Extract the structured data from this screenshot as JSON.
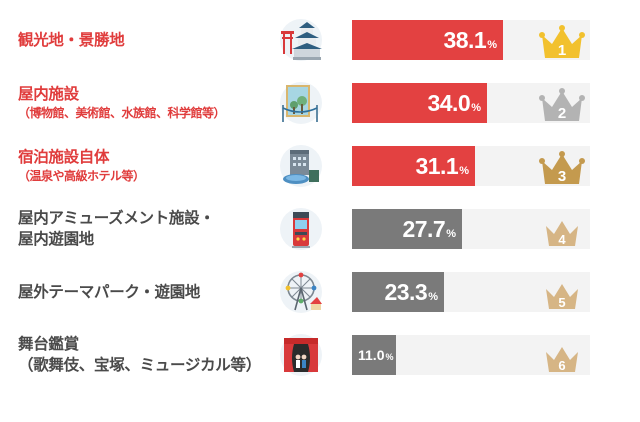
{
  "chart_data": {
    "type": "bar",
    "orientation": "horizontal",
    "unit": "%",
    "xlim": [
      0,
      60
    ],
    "categories": [
      {
        "label": "観光地・景勝地",
        "sub": "",
        "value": 38.1,
        "rank": 1,
        "icon": "castle-icon"
      },
      {
        "label": "屋内施設",
        "sub": "（博物館、美術館、水族館、科学館等）",
        "value": 34.0,
        "rank": 2,
        "icon": "museum-painting-icon"
      },
      {
        "label": "宿泊施設自体",
        "sub": "（温泉や高級ホテル等）",
        "value": 31.1,
        "rank": 3,
        "icon": "hotel-onsen-icon"
      },
      {
        "label": "屋内アミューズメント施設・",
        "sub": "屋内遊園地",
        "value": 27.7,
        "rank": 4,
        "icon": "arcade-machine-icon"
      },
      {
        "label": "屋外テーマパーク・遊園地",
        "sub": "",
        "value": 23.3,
        "rank": 5,
        "icon": "ferris-wheel-icon"
      },
      {
        "label": "舞台鑑賞",
        "sub": "（歌舞伎、宝塚、ミュージカル等）",
        "value": 11.0,
        "rank": 6,
        "icon": "theater-stage-icon"
      }
    ]
  },
  "colors": {
    "highlight": "#e34141",
    "normal": "#7a7a7a",
    "label_highlight": "#e03c3c",
    "label_normal": "#4a4a4a",
    "gold": "#f2c12e",
    "silver": "#b3b3b3",
    "bronze": "#c49a4e",
    "other_crown": "#d6b585",
    "track": "#f3f3f3"
  }
}
